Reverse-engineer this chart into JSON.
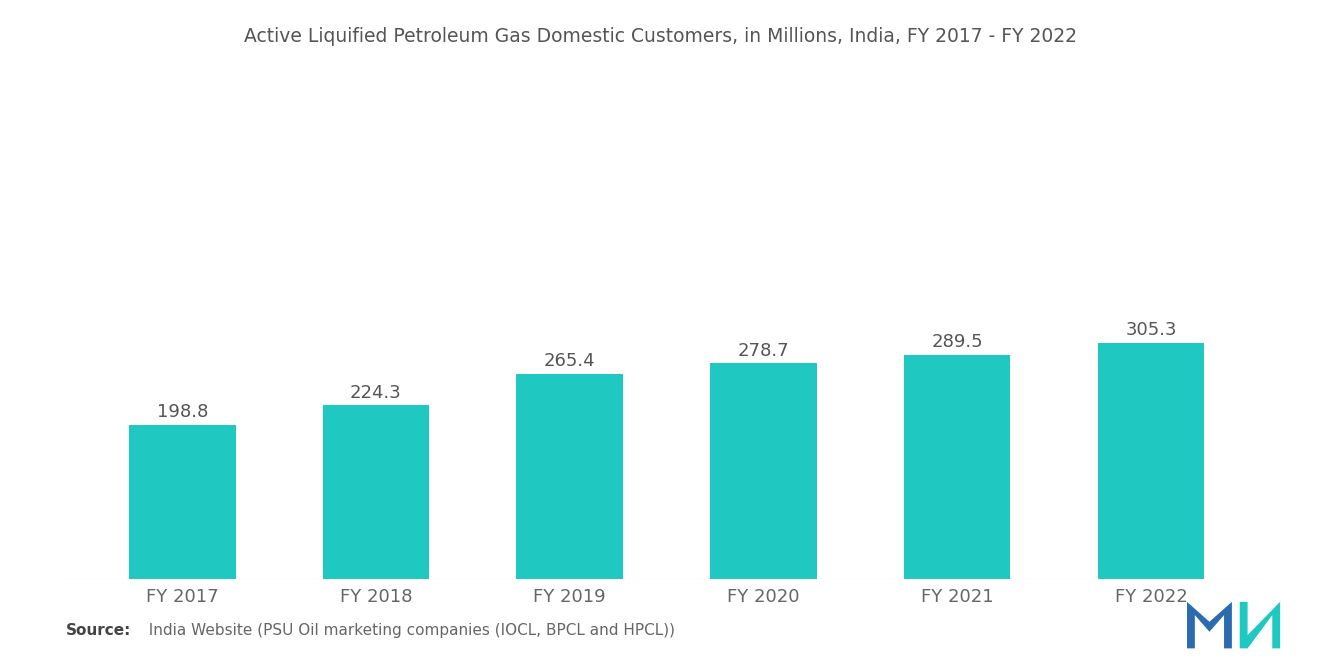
{
  "title": "Active Liquified Petroleum Gas Domestic Customers, in Millions, India, FY 2017 - FY 2022",
  "categories": [
    "FY 2017",
    "FY 2018",
    "FY 2019",
    "FY 2020",
    "FY 2021",
    "FY 2022"
  ],
  "values": [
    198.8,
    224.3,
    265.4,
    278.7,
    289.5,
    305.3
  ],
  "bar_color": "#1FC8C0",
  "background_color": "#FFFFFF",
  "title_fontsize": 13.5,
  "label_fontsize": 13,
  "tick_fontsize": 13,
  "source_bold": "Source:",
  "source_rest": "  India Website (PSU Oil marketing companies (IOCL, BPCL and HPCL))",
  "ylim": [
    0,
    560
  ],
  "bar_width": 0.55
}
